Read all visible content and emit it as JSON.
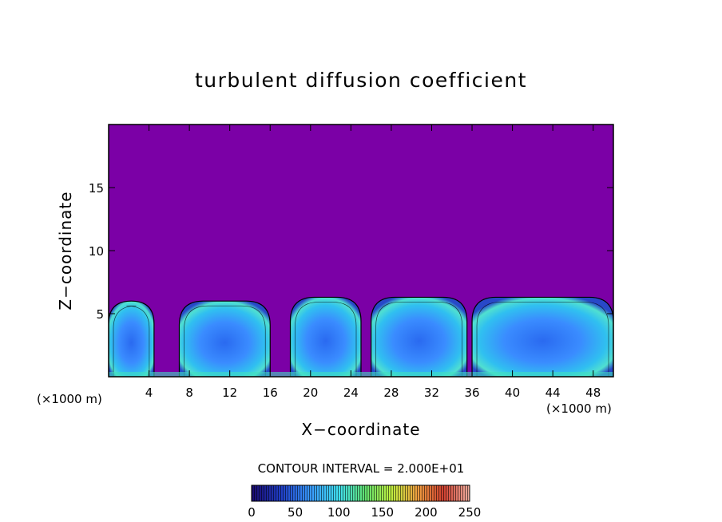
{
  "chart_data": {
    "type": "heatmap",
    "title": "turbulent diffusion coefficient",
    "xlabel": "X−coordinate",
    "ylabel": "Z−coordinate",
    "x_unit_label": "(×1000 m)",
    "y_unit_label": "(×1000 m)",
    "xlim": [
      0,
      50
    ],
    "ylim": [
      0,
      20
    ],
    "x_ticks": [
      4,
      8,
      12,
      16,
      20,
      24,
      28,
      32,
      36,
      40,
      44,
      48
    ],
    "y_ticks": [
      5,
      10,
      15
    ],
    "contour_interval_text": "CONTOUR INTERVAL = 2.000E+01",
    "colorbar": {
      "min": 0,
      "max": 250,
      "ticks": [
        0,
        50,
        100,
        150,
        200,
        250
      ],
      "colors": [
        "#1a0a6e",
        "#2040c8",
        "#3aa0ff",
        "#40e0f0",
        "#60e070",
        "#c0f040",
        "#f0a040",
        "#d04030",
        "#f0b0a0"
      ]
    },
    "background_value_color": "#7b00a6",
    "plume_tops_km": [
      {
        "x": [
          0,
          4.5
        ],
        "top": 6.0
      },
      {
        "x": [
          7,
          16
        ],
        "top": 6.0
      },
      {
        "x": [
          18,
          25
        ],
        "top": 6.3
      },
      {
        "x": [
          26,
          35.5
        ],
        "top": 6.3
      },
      {
        "x": [
          36,
          50
        ],
        "top": 6.3
      }
    ]
  }
}
